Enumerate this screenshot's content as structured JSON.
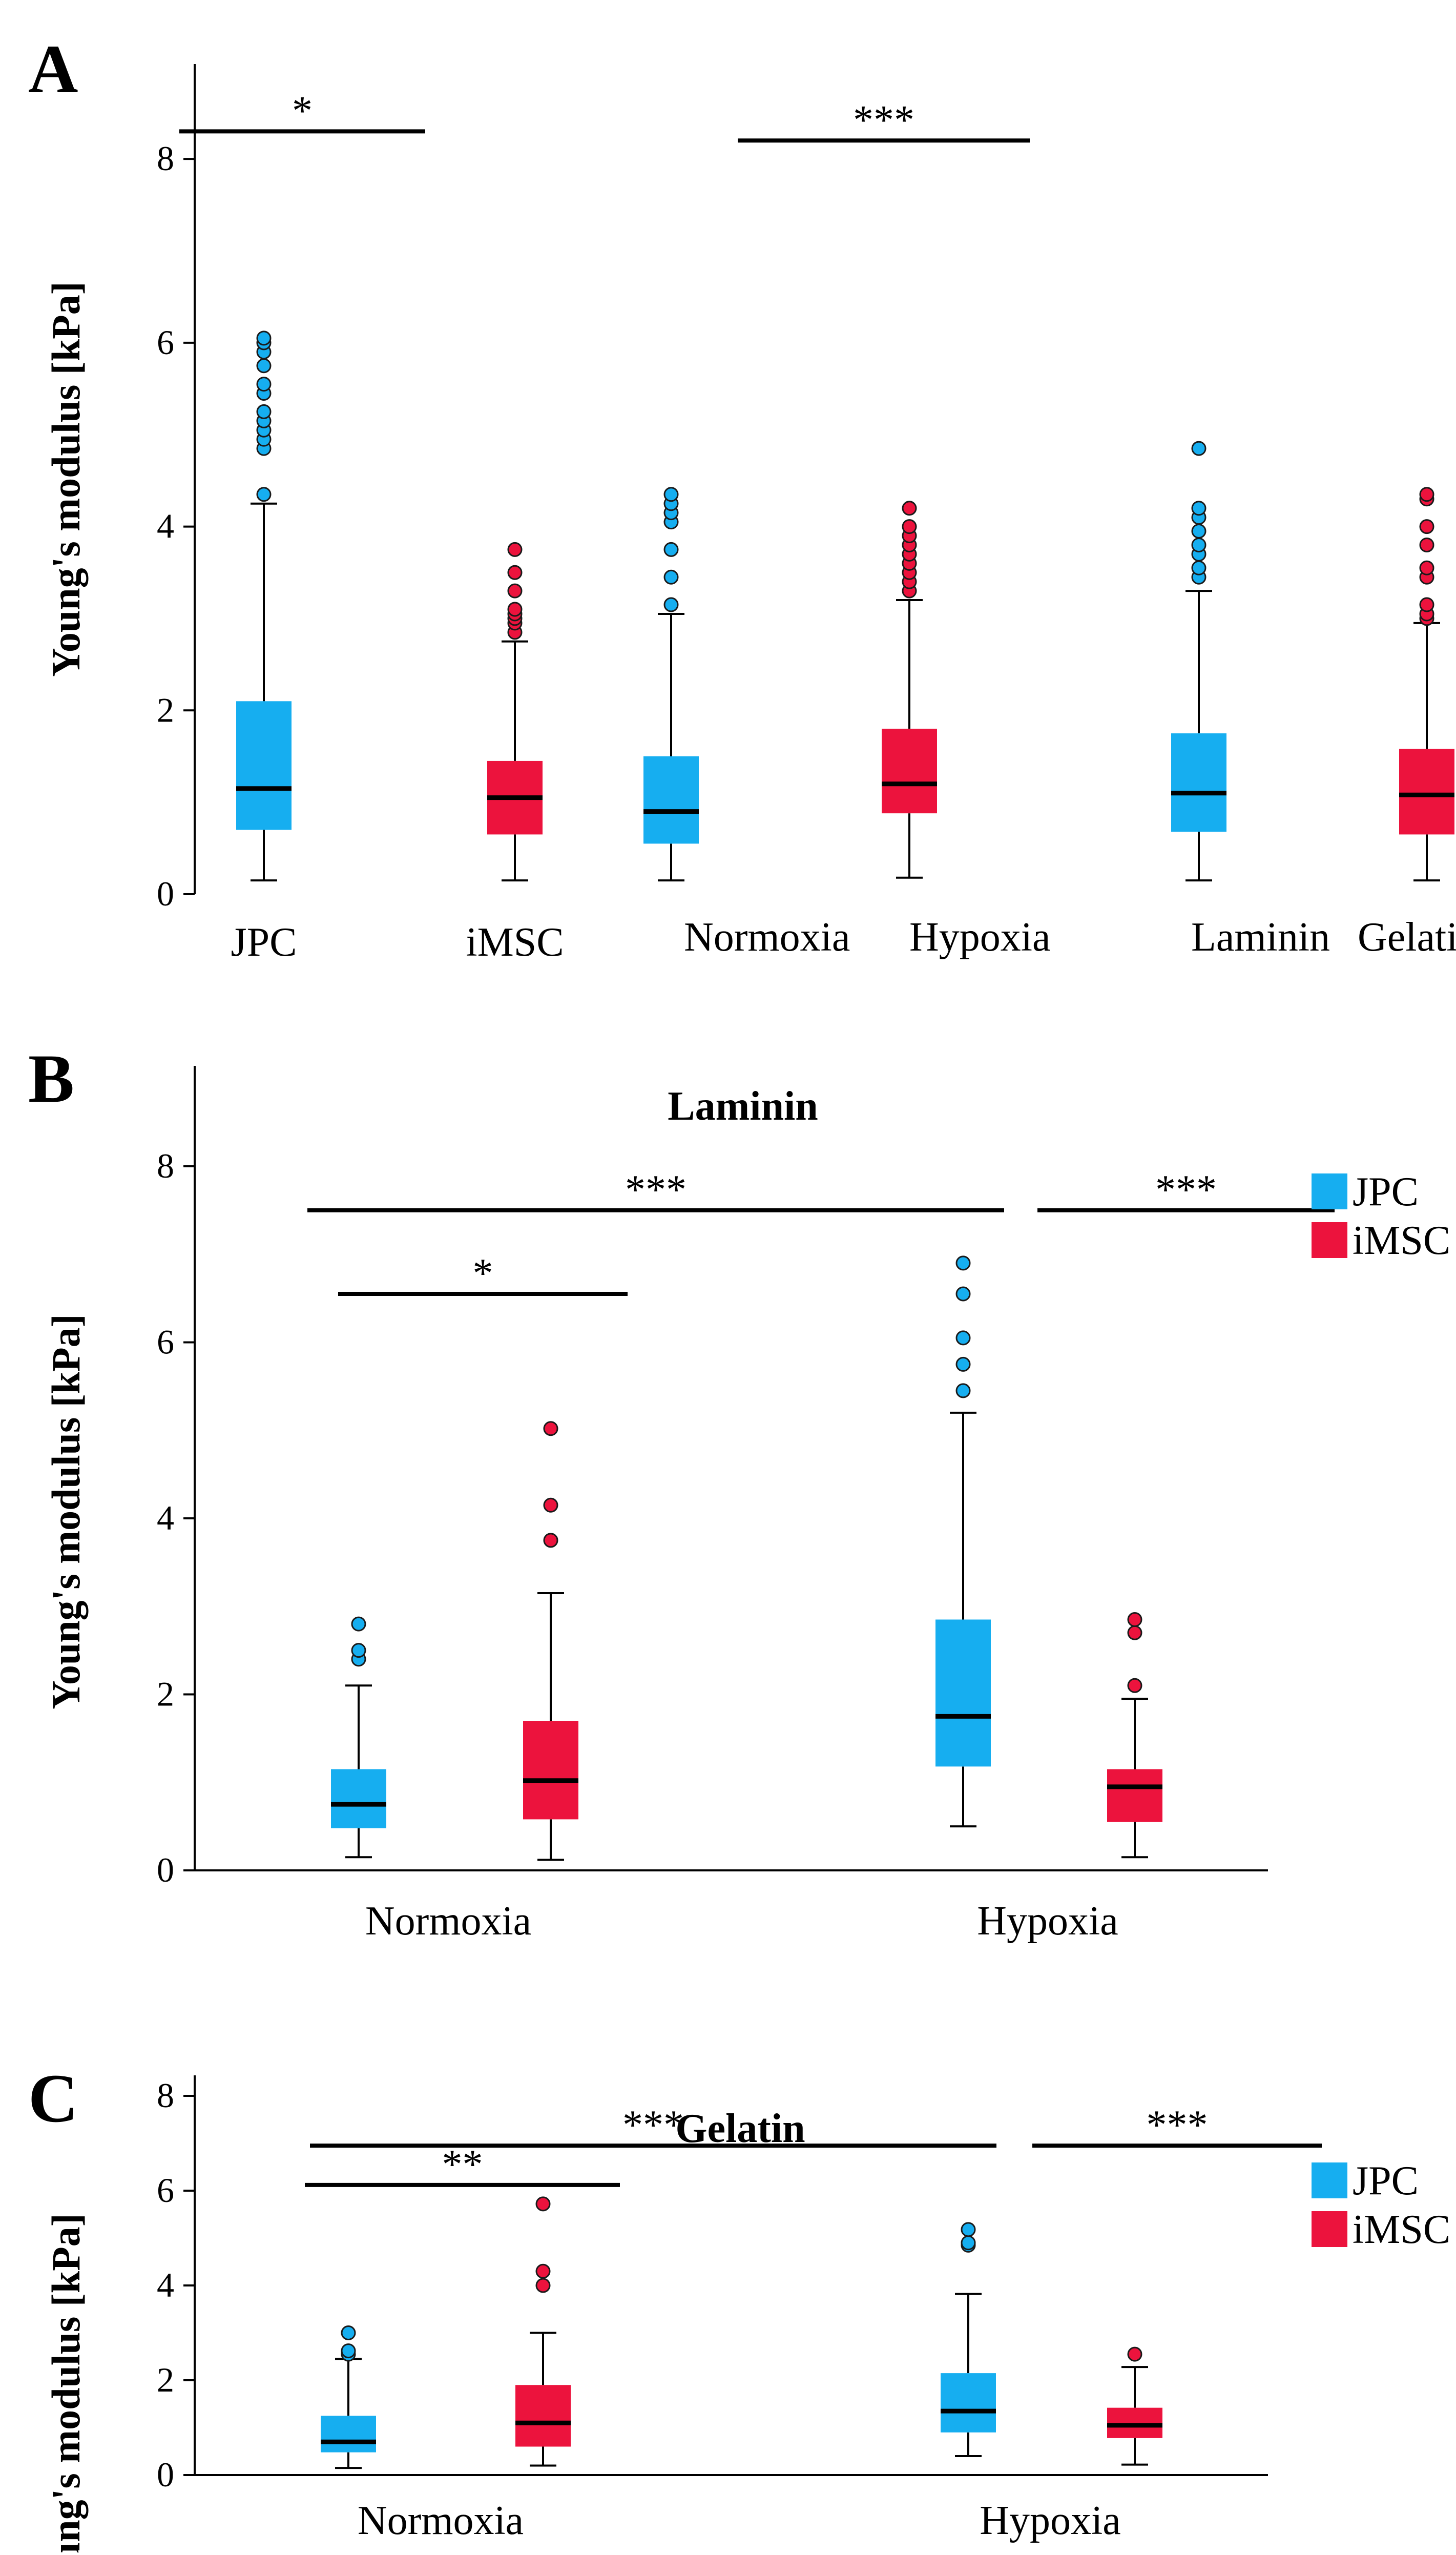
{
  "colors": {
    "jpc": "#16aef0",
    "imsc": "#ec133d",
    "axis": "#000000"
  },
  "chart_data": [
    {
      "panel": "A",
      "type": "box",
      "title": "",
      "ylabel": "Young's modulus [kPa]",
      "ylim": [
        0,
        9
      ],
      "yticks": [
        0,
        2,
        4,
        6,
        8
      ],
      "categories": [
        "JPC",
        "iMSC",
        "Normoxia",
        "Hypoxia",
        "Laminin",
        "Gelatin"
      ],
      "legend": [],
      "boxes": [
        {
          "category": "JPC",
          "color": "jpc",
          "min": 0.15,
          "q1": 0.7,
          "median": 1.15,
          "q3": 2.1,
          "max": 4.25,
          "outliers": [
            4.35,
            4.85,
            4.95,
            5.05,
            5.15,
            5.25,
            5.45,
            5.55,
            5.75,
            5.9,
            6.0,
            6.05
          ]
        },
        {
          "category": "iMSC",
          "color": "imsc",
          "min": 0.15,
          "q1": 0.65,
          "median": 1.05,
          "q3": 1.45,
          "max": 2.75,
          "outliers": [
            2.85,
            2.95,
            3.0,
            3.05,
            3.1,
            3.3,
            3.5,
            3.75
          ]
        },
        {
          "category": "Normoxia",
          "color": "jpc",
          "min": 0.15,
          "q1": 0.55,
          "median": 0.9,
          "q3": 1.5,
          "max": 3.05,
          "outliers": [
            3.15,
            3.45,
            3.75,
            4.05,
            4.15,
            4.25,
            4.35
          ]
        },
        {
          "category": "Hypoxia",
          "color": "imsc",
          "min": 0.18,
          "q1": 0.88,
          "median": 1.2,
          "q3": 1.8,
          "max": 3.2,
          "outliers": [
            3.3,
            3.4,
            3.5,
            3.6,
            3.7,
            3.8,
            3.9,
            4.0,
            4.2
          ]
        },
        {
          "category": "Laminin",
          "color": "jpc",
          "min": 0.15,
          "q1": 0.68,
          "median": 1.1,
          "q3": 1.75,
          "max": 3.3,
          "outliers": [
            3.45,
            3.55,
            3.7,
            3.8,
            3.95,
            4.1,
            4.2,
            4.85
          ]
        },
        {
          "category": "Gelatin",
          "color": "imsc",
          "min": 0.15,
          "q1": 0.65,
          "median": 1.08,
          "q3": 1.58,
          "max": 2.95,
          "outliers": [
            3.0,
            3.05,
            3.15,
            3.45,
            3.55,
            3.8,
            4.0,
            4.3,
            4.35
          ]
        }
      ],
      "significance": [
        {
          "from": 0,
          "to": 1,
          "y": 8.3,
          "label": "*"
        },
        {
          "from": 2,
          "to": 3,
          "y": 8.2,
          "label": "***"
        }
      ]
    },
    {
      "panel": "B",
      "type": "box",
      "title": "Laminin",
      "ylabel": "Young's modulus [kPa]",
      "ylim": [
        0,
        9
      ],
      "yticks": [
        0,
        2,
        4,
        6,
        8
      ],
      "categories": [
        "Normoxia",
        "Hypoxia"
      ],
      "legend": [
        {
          "label": "JPC",
          "color": "jpc"
        },
        {
          "label": "iMSC",
          "color": "imsc"
        }
      ],
      "boxes": [
        {
          "category": "Normoxia",
          "series": "JPC",
          "color": "jpc",
          "min": 0.15,
          "q1": 0.48,
          "median": 0.75,
          "q3": 1.15,
          "max": 2.1,
          "outliers": [
            2.4,
            2.5,
            2.8
          ]
        },
        {
          "category": "Normoxia",
          "series": "iMSC",
          "color": "imsc",
          "min": 0.12,
          "q1": 0.58,
          "median": 1.02,
          "q3": 1.7,
          "max": 3.15,
          "outliers": [
            3.75,
            4.15,
            5.02
          ]
        },
        {
          "category": "Hypoxia",
          "series": "JPC",
          "color": "jpc",
          "min": 0.5,
          "q1": 1.18,
          "median": 1.75,
          "q3": 2.85,
          "max": 5.2,
          "outliers": [
            5.45,
            5.75,
            6.05,
            6.55,
            6.9
          ]
        },
        {
          "category": "Hypoxia",
          "series": "iMSC",
          "color": "imsc",
          "min": 0.15,
          "q1": 0.55,
          "median": 0.95,
          "q3": 1.15,
          "max": 1.95,
          "outliers": [
            2.1,
            2.7,
            2.85
          ]
        }
      ],
      "significance": [
        {
          "from": 0,
          "to": 2,
          "y": 7.5,
          "label": "***"
        },
        {
          "from": 2.4,
          "to": 3.35,
          "y": 7.5,
          "label": "***"
        },
        {
          "from": 0,
          "to": 1,
          "y": 6.55,
          "label": "*"
        }
      ]
    },
    {
      "panel": "C",
      "type": "box",
      "title": "Gelatin",
      "ylabel": "Young's modulus [kPa]",
      "ylim": [
        0,
        9
      ],
      "yticks": [
        0,
        2,
        4,
        6,
        8
      ],
      "categories": [
        "Normoxia",
        "Hypoxia"
      ],
      "legend": [
        {
          "label": "JPC",
          "color": "jpc"
        },
        {
          "label": "iMSC",
          "color": "imsc"
        }
      ],
      "boxes": [
        {
          "category": "Normoxia",
          "series": "JPC",
          "color": "jpc",
          "min": 0.15,
          "q1": 0.48,
          "median": 0.7,
          "q3": 1.25,
          "max": 2.45,
          "outliers": [
            2.55,
            2.62,
            3.0
          ]
        },
        {
          "category": "Normoxia",
          "series": "iMSC",
          "color": "imsc",
          "min": 0.2,
          "q1": 0.6,
          "median": 1.1,
          "q3": 1.9,
          "max": 3.0,
          "outliers": [
            4.0,
            4.3,
            5.72
          ]
        },
        {
          "category": "Hypoxia",
          "series": "JPC",
          "color": "jpc",
          "min": 0.4,
          "q1": 0.9,
          "median": 1.35,
          "q3": 2.15,
          "max": 3.82,
          "outliers": [
            4.85,
            4.9,
            5.18
          ]
        },
        {
          "category": "Hypoxia",
          "series": "iMSC",
          "color": "imsc",
          "min": 0.22,
          "q1": 0.78,
          "median": 1.05,
          "q3": 1.42,
          "max": 2.28,
          "outliers": [
            2.55
          ]
        }
      ],
      "significance": [
        {
          "from": 0,
          "to": 2,
          "y": 6.95,
          "label": "***"
        },
        {
          "from": 2.4,
          "to": 3.35,
          "y": 6.95,
          "label": "***"
        },
        {
          "from": 0,
          "to": 1,
          "y": 6.12,
          "label": "**"
        }
      ]
    }
  ]
}
